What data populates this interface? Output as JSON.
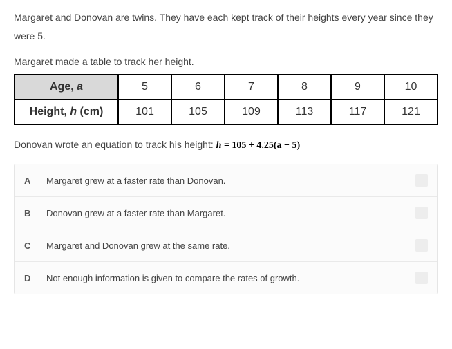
{
  "intro": "Margaret and Donovan are twins. They have each kept track of their heights every year since they were 5.",
  "table_intro": "Margaret made a table to track her height.",
  "table": {
    "header_label_prefix": "Age, ",
    "header_label_var": "a",
    "row_label_prefix": "Height, ",
    "row_label_var": "h",
    "row_label_suffix": " (cm)",
    "ages": [
      "5",
      "6",
      "7",
      "8",
      "9",
      "10"
    ],
    "heights": [
      "101",
      "105",
      "109",
      "113",
      "117",
      "121"
    ],
    "border_color": "#000000",
    "header_bg": "#d9d9d9"
  },
  "equation": {
    "lead": "Donovan wrote an equation to track his height: ",
    "formula_var": "h",
    "formula_rest": " = 105 + 4.25(a − 5)"
  },
  "choices": [
    {
      "letter": "A",
      "text": "Margaret grew at a faster rate than Donovan."
    },
    {
      "letter": "B",
      "text": "Donovan grew at a faster rate than Margaret."
    },
    {
      "letter": "C",
      "text": "Margaret and Donovan grew at the same rate."
    },
    {
      "letter": "D",
      "text": "Not enough information is given to compare the rates of growth."
    }
  ],
  "colors": {
    "text": "#444444",
    "choice_bg": "#fbfbfb",
    "choice_border": "#e5e5e5",
    "box_bg": "#ededed"
  }
}
